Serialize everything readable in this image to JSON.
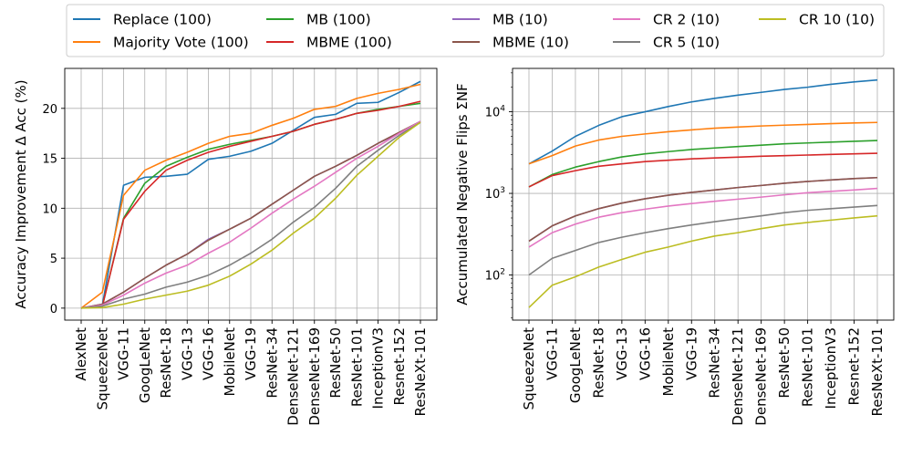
{
  "chart_data": [
    {
      "type": "line",
      "ylabel": "Accuracy Improvement Δ Acc (%)",
      "xlabel": "",
      "yscale": "linear",
      "ylim": [
        -1.2,
        24
      ],
      "yticks": [
        0,
        5,
        10,
        15,
        20
      ],
      "grid": true,
      "categories": [
        "AlexNet",
        "SqueezeNet",
        "VGG-11",
        "GoogLeNet",
        "ResNet-18",
        "VGG-13",
        "VGG-16",
        "MobileNet",
        "VGG-19",
        "ResNet-34",
        "DenseNet-121",
        "DenseNet-169",
        "ResNet-50",
        "ResNet-101",
        "InceptionV3",
        "Resnet-152",
        "ResNeXt-101"
      ],
      "series": [
        {
          "name": "Replace (100)",
          "color": "#1f77b4",
          "values": [
            0,
            0.3,
            12.3,
            13.1,
            13.2,
            13.4,
            14.9,
            15.2,
            15.7,
            16.5,
            17.8,
            19.1,
            19.4,
            20.5,
            20.6,
            21.6,
            22.7
          ]
        },
        {
          "name": "Majority Vote (100)",
          "color": "#ff7f0e",
          "values": [
            0,
            1.6,
            11.3,
            13.8,
            14.8,
            15.6,
            16.5,
            17.2,
            17.5,
            18.3,
            19.0,
            19.9,
            20.2,
            21.0,
            21.5,
            21.9,
            22.4
          ]
        },
        {
          "name": "MB (100)",
          "color": "#2ca02c",
          "values": [
            0,
            0.2,
            9.0,
            12.5,
            14.2,
            15.1,
            15.9,
            16.4,
            16.8,
            17.2,
            17.7,
            18.4,
            18.9,
            19.5,
            19.9,
            20.2,
            20.5
          ]
        },
        {
          "name": "MBME (100)",
          "color": "#d62728",
          "values": [
            0,
            0.2,
            8.9,
            11.7,
            13.8,
            14.8,
            15.6,
            16.2,
            16.7,
            17.2,
            17.7,
            18.4,
            18.9,
            19.5,
            19.8,
            20.2,
            20.7
          ]
        },
        {
          "name": "MB (10)",
          "color": "#9467bd",
          "values": [
            0,
            0.4,
            1.6,
            3.0,
            4.3,
            5.4,
            6.9,
            7.9,
            9.0,
            10.4,
            11.8,
            13.2,
            14.2,
            15.3,
            16.5,
            17.5,
            18.6
          ]
        },
        {
          "name": "MBME (10)",
          "color": "#8c564b",
          "values": [
            0,
            0.4,
            1.6,
            3.0,
            4.3,
            5.4,
            6.8,
            7.9,
            9.0,
            10.4,
            11.8,
            13.2,
            14.2,
            15.3,
            16.5,
            17.6,
            18.7
          ]
        },
        {
          "name": "CR 2 (10)",
          "color": "#e377c2",
          "values": [
            0,
            0.3,
            1.3,
            2.5,
            3.5,
            4.3,
            5.5,
            6.6,
            8.0,
            9.5,
            10.9,
            12.2,
            13.6,
            15.0,
            16.2,
            17.5,
            18.7
          ]
        },
        {
          "name": "CR 5 (10)",
          "color": "#7f7f7f",
          "values": [
            0,
            0.2,
            0.9,
            1.4,
            2.1,
            2.6,
            3.3,
            4.3,
            5.5,
            6.9,
            8.6,
            10.1,
            12.0,
            14.2,
            15.8,
            17.3,
            18.6
          ]
        },
        {
          "name": "CR 10 (10)",
          "color": "#bcbd22",
          "values": [
            0,
            0.05,
            0.4,
            0.9,
            1.3,
            1.7,
            2.3,
            3.2,
            4.4,
            5.8,
            7.5,
            9.0,
            11.0,
            13.3,
            15.2,
            17.1,
            18.6
          ]
        }
      ]
    },
    {
      "type": "line",
      "ylabel": "Accumulated Negative Flips ΣNF",
      "xlabel": "",
      "yscale": "log",
      "ylim": [
        28,
        34000
      ],
      "yticks": [
        100,
        1000,
        10000
      ],
      "grid": true,
      "categories": [
        "SqueezeNet",
        "VGG-11",
        "GoogLeNet",
        "ResNet-18",
        "VGG-13",
        "VGG-16",
        "MobileNet",
        "VGG-19",
        "ResNet-34",
        "DenseNet-121",
        "DenseNet-169",
        "ResNet-50",
        "ResNet-101",
        "InceptionV3",
        "Resnet-152",
        "ResNeXt-101"
      ],
      "series": [
        {
          "name": "Replace (100)",
          "color": "#1f77b4",
          "values": [
            2300,
            3300,
            5000,
            6800,
            8700,
            10000,
            11600,
            13200,
            14600,
            16000,
            17300,
            18800,
            20000,
            21700,
            23200,
            24500
          ]
        },
        {
          "name": "Majority Vote (100)",
          "color": "#ff7f0e",
          "values": [
            2300,
            2900,
            3800,
            4500,
            5000,
            5350,
            5700,
            6000,
            6300,
            6500,
            6700,
            6850,
            7000,
            7150,
            7300,
            7400
          ]
        },
        {
          "name": "MB (100)",
          "color": "#2ca02c",
          "values": [
            1200,
            1700,
            2100,
            2450,
            2800,
            3050,
            3250,
            3450,
            3600,
            3750,
            3900,
            4050,
            4150,
            4250,
            4350,
            4450
          ]
        },
        {
          "name": "MBME (100)",
          "color": "#d62728",
          "values": [
            1200,
            1650,
            1900,
            2150,
            2300,
            2450,
            2550,
            2650,
            2720,
            2780,
            2850,
            2900,
            2950,
            3000,
            3050,
            3100
          ]
        },
        {
          "name": "MB (10)",
          "color": "#9467bd",
          "values": [
            260,
            400,
            530,
            650,
            760,
            860,
            950,
            1030,
            1100,
            1180,
            1250,
            1330,
            1400,
            1460,
            1520,
            1560
          ]
        },
        {
          "name": "MBME (10)",
          "color": "#8c564b",
          "values": [
            260,
            400,
            530,
            650,
            760,
            860,
            950,
            1030,
            1100,
            1180,
            1250,
            1330,
            1400,
            1460,
            1520,
            1560
          ]
        },
        {
          "name": "CR 2 (10)",
          "color": "#e377c2",
          "values": [
            220,
            330,
            420,
            510,
            580,
            640,
            700,
            750,
            800,
            850,
            900,
            960,
            1020,
            1060,
            1100,
            1150
          ]
        },
        {
          "name": "CR 5 (10)",
          "color": "#7f7f7f",
          "values": [
            100,
            160,
            200,
            250,
            290,
            330,
            370,
            410,
            450,
            490,
            530,
            580,
            620,
            650,
            680,
            710
          ]
        },
        {
          "name": "CR 10 (10)",
          "color": "#bcbd22",
          "values": [
            40,
            75,
            95,
            125,
            155,
            190,
            220,
            260,
            300,
            330,
            370,
            410,
            440,
            470,
            500,
            530
          ]
        }
      ]
    }
  ],
  "legend": {
    "placement": "top",
    "columns": [
      [
        "Replace (100)",
        "Majority Vote (100)"
      ],
      [
        "MB (100)",
        "MBME (100)"
      ],
      [
        "MB (10)",
        "MBME (10)"
      ],
      [
        "CR 2 (10)",
        "CR 5 (10)"
      ],
      [
        "CR 10 (10)"
      ]
    ]
  }
}
